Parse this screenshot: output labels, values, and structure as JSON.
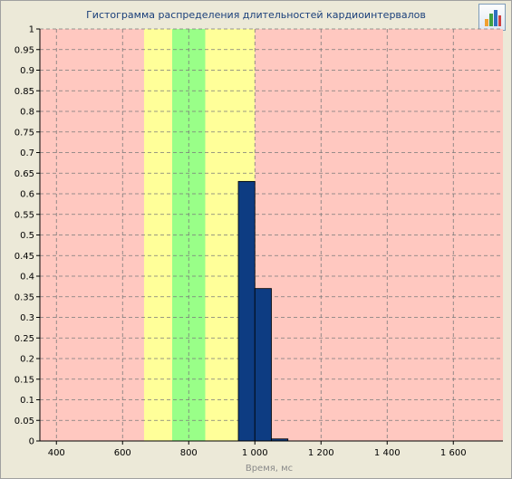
{
  "chart_data": {
    "type": "bar",
    "title": "Гистограмма распределения длительностей кардиоинтервалов",
    "xlabel": "Время, мс",
    "ylabel": "",
    "xlim": [
      350,
      1750
    ],
    "ylim": [
      0,
      1
    ],
    "x_ticks": [
      400,
      600,
      800,
      1000,
      1200,
      1400,
      1600
    ],
    "x_tick_labels": [
      "400",
      "600",
      "800",
      "1 000",
      "1 200",
      "1 400",
      "1 600"
    ],
    "y_ticks": [
      0,
      0.05,
      0.1,
      0.15,
      0.2,
      0.25,
      0.3,
      0.35,
      0.4,
      0.45,
      0.5,
      0.55,
      0.6,
      0.65,
      0.7,
      0.75,
      0.8,
      0.85,
      0.9,
      0.95,
      1
    ],
    "y_tick_labels": [
      "0",
      "0.05",
      "0.1",
      "0.15",
      "0.2",
      "0.25",
      "0.3",
      "0.35",
      "0.4",
      "0.45",
      "0.5",
      "0.55",
      "0.6",
      "0.65",
      "0.7",
      "0.75",
      "0.8",
      "0.85",
      "0.9",
      "0.95",
      "1"
    ],
    "bins": [
      {
        "x0": 950,
        "x1": 1000,
        "value": 0.63
      },
      {
        "x0": 1000,
        "x1": 1050,
        "value": 0.37
      },
      {
        "x0": 1050,
        "x1": 1100,
        "value": 0.005
      }
    ],
    "zones": [
      {
        "x0": 350,
        "x1": 665,
        "color": "#ffc8c0"
      },
      {
        "x0": 665,
        "x1": 750,
        "color": "#ffff99"
      },
      {
        "x0": 750,
        "x1": 850,
        "color": "#99ff88"
      },
      {
        "x0": 850,
        "x1": 1000,
        "color": "#ffff99"
      },
      {
        "x0": 1000,
        "x1": 1750,
        "color": "#ffc8c0"
      }
    ],
    "bar_color": "#0d3c82",
    "grid": true
  },
  "toolbar": {
    "chart_button_icon": "bar-chart-icon"
  }
}
